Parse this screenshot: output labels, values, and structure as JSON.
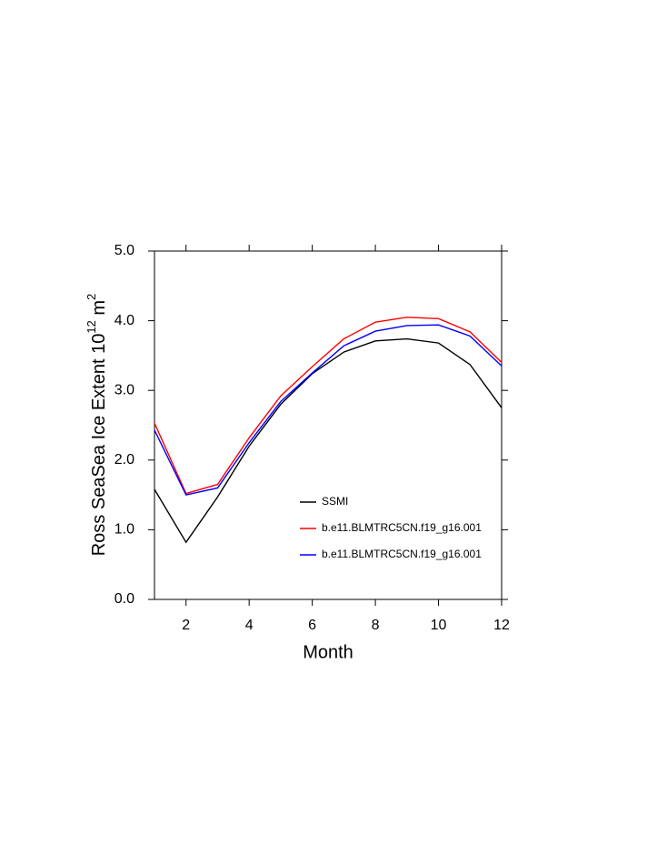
{
  "chart_data": {
    "type": "line",
    "x_label": "Month",
    "y_label": "Ross SeaSea Ice Extent 10",
    "y_label_exp": "12",
    "y_label_unit": "m",
    "y_label_unit_exp": "2",
    "x": [
      1,
      2,
      3,
      4,
      5,
      6,
      7,
      8,
      9,
      10,
      11,
      12
    ],
    "series": [
      {
        "name": "SSMI",
        "color": "#000000",
        "values": [
          1.58,
          0.82,
          1.47,
          2.2,
          2.8,
          3.24,
          3.55,
          3.71,
          3.74,
          3.68,
          3.37,
          2.75
        ]
      },
      {
        "name": "b.e11.BLMTRC5CN.f19_g16.001",
        "color": "#ff0000",
        "values": [
          2.53,
          1.52,
          1.65,
          2.32,
          2.92,
          3.34,
          3.74,
          3.98,
          4.05,
          4.03,
          3.84,
          3.4
        ]
      },
      {
        "name": "b.e11.BLMTRC5CN.f19_g16.001",
        "color": "#0000ff",
        "values": [
          2.43,
          1.5,
          1.6,
          2.25,
          2.84,
          3.25,
          3.64,
          3.85,
          3.93,
          3.94,
          3.78,
          3.35
        ]
      }
    ],
    "xlim": [
      1,
      12
    ],
    "xticks": [
      2,
      4,
      6,
      8,
      10,
      12
    ],
    "ylim": [
      0,
      5
    ],
    "yticks": [
      {
        "value": 0,
        "label": "0.0"
      },
      {
        "value": 1,
        "label": "1.0"
      },
      {
        "value": 2,
        "label": "2.0"
      },
      {
        "value": 3,
        "label": "3.0"
      },
      {
        "value": 4,
        "label": "4.0"
      },
      {
        "value": 5,
        "label": "5.0"
      }
    ]
  }
}
